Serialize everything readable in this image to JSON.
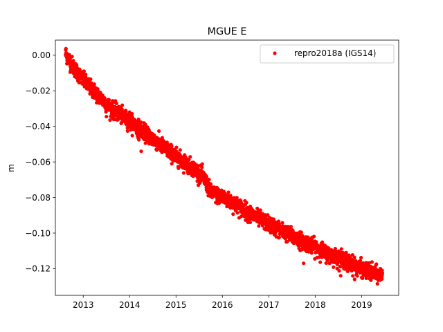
{
  "chart_data": {
    "type": "scatter",
    "title": "MGUE E",
    "xlabel": "",
    "ylabel": "m",
    "xlim": [
      2012.4,
      2019.8
    ],
    "ylim": [
      -0.135,
      0.0085
    ],
    "x_ticks": [
      2013,
      2014,
      2015,
      2016,
      2017,
      2018,
      2019
    ],
    "x_tick_labels": [
      "2013",
      "2014",
      "2015",
      "2016",
      "2017",
      "2018",
      "2019"
    ],
    "y_ticks": [
      0.0,
      -0.02,
      -0.04,
      -0.06,
      -0.08,
      -0.1,
      -0.12
    ],
    "y_tick_labels": [
      "0.00",
      "−0.02",
      "−0.04",
      "−0.06",
      "−0.08",
      "−0.10",
      "−0.12"
    ],
    "grid": false,
    "legend_position": "top-right",
    "series": [
      {
        "name": "repro2018a (IGS14)",
        "color": "#ff0000",
        "marker": "circle",
        "trend": {
          "x": [
            2012.62,
            2012.8,
            2013.0,
            2013.3,
            2013.6,
            2014.0,
            2014.3,
            2014.6,
            2015.0,
            2015.4,
            2015.6,
            2015.75,
            2016.0,
            2016.3,
            2016.6,
            2017.0,
            2017.3,
            2017.6,
            2018.0,
            2018.3,
            2018.6,
            2019.0,
            2019.3,
            2019.45
          ],
          "y": [
            0.001,
            -0.007,
            -0.014,
            -0.022,
            -0.03,
            -0.037,
            -0.043,
            -0.049,
            -0.057,
            -0.064,
            -0.069,
            -0.077,
            -0.08,
            -0.084,
            -0.089,
            -0.095,
            -0.099,
            -0.103,
            -0.108,
            -0.112,
            -0.115,
            -0.12,
            -0.123,
            -0.124
          ]
        },
        "scatter": 0.0022,
        "outliers": [
          {
            "x": 2012.72,
            "y": -0.0095
          },
          {
            "x": 2013.5,
            "y": -0.0345
          },
          {
            "x": 2014.2,
            "y": -0.0475
          },
          {
            "x": 2014.25,
            "y": -0.054
          },
          {
            "x": 2014.0,
            "y": -0.032
          },
          {
            "x": 2015.5,
            "y": -0.071
          },
          {
            "x": 2016.6,
            "y": -0.094
          },
          {
            "x": 2017.75,
            "y": -0.117
          },
          {
            "x": 2018.55,
            "y": -0.124
          },
          {
            "x": 2018.7,
            "y": -0.1215
          },
          {
            "x": 2018.85,
            "y": -0.126
          },
          {
            "x": 2019.2,
            "y": -0.1265
          }
        ]
      }
    ]
  }
}
